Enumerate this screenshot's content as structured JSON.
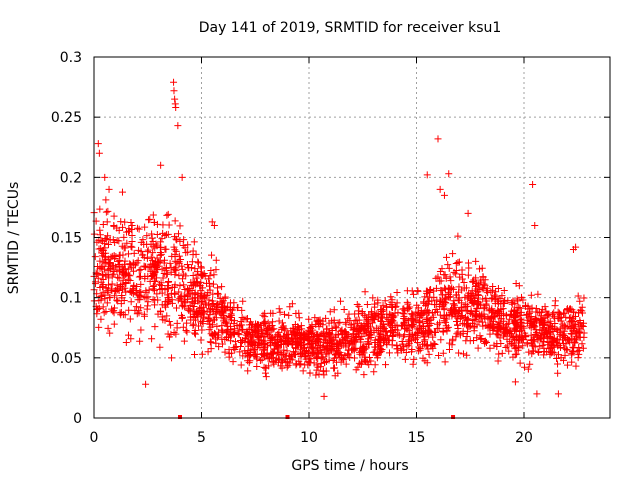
{
  "chart_data": {
    "type": "scatter",
    "title": "Day 141 of 2019, SRMTID for receiver ksu1",
    "xlabel": "GPS time / hours",
    "ylabel": "SRMTID / TECUs",
    "xlim": [
      0,
      24
    ],
    "ylim": [
      0,
      0.3
    ],
    "x_ticks": [
      0,
      5,
      10,
      15,
      20
    ],
    "x_tick_labels": [
      "0",
      "5",
      "10",
      "15",
      "20"
    ],
    "y_ticks": [
      0,
      0.05,
      0.1,
      0.15,
      0.2,
      0.25,
      0.3
    ],
    "y_tick_labels": [
      "0",
      "0.05",
      "0.1",
      "0.15",
      "0.2",
      "0.25",
      "0.3"
    ],
    "grid": true,
    "marker": "+",
    "color": "#ff0000",
    "series": [
      {
        "name": "SRMTID",
        "description": "dense scatter of per-epoch SRMTID values; envelope given as time/center/spread, notable spikes listed explicitly",
        "envelope": [
          {
            "t": 0.0,
            "center": 0.13,
            "spread": 0.05
          },
          {
            "t": 1.0,
            "center": 0.12,
            "spread": 0.05
          },
          {
            "t": 2.0,
            "center": 0.12,
            "spread": 0.05
          },
          {
            "t": 3.0,
            "center": 0.12,
            "spread": 0.05
          },
          {
            "t": 4.0,
            "center": 0.11,
            "spread": 0.05
          },
          {
            "t": 5.0,
            "center": 0.1,
            "spread": 0.04
          },
          {
            "t": 6.0,
            "center": 0.085,
            "spread": 0.035
          },
          {
            "t": 7.0,
            "center": 0.065,
            "spread": 0.025
          },
          {
            "t": 9.0,
            "center": 0.062,
            "spread": 0.025
          },
          {
            "t": 11.0,
            "center": 0.062,
            "spread": 0.025
          },
          {
            "t": 13.0,
            "center": 0.072,
            "spread": 0.03
          },
          {
            "t": 15.0,
            "center": 0.075,
            "spread": 0.03
          },
          {
            "t": 16.0,
            "center": 0.09,
            "spread": 0.04
          },
          {
            "t": 17.0,
            "center": 0.095,
            "spread": 0.04
          },
          {
            "t": 18.0,
            "center": 0.09,
            "spread": 0.035
          },
          {
            "t": 19.0,
            "center": 0.08,
            "spread": 0.03
          },
          {
            "t": 20.0,
            "center": 0.075,
            "spread": 0.03
          },
          {
            "t": 21.0,
            "center": 0.07,
            "spread": 0.03
          },
          {
            "t": 22.0,
            "center": 0.07,
            "spread": 0.03
          },
          {
            "t": 22.8,
            "center": 0.07,
            "spread": 0.03
          }
        ],
        "spikes": [
          {
            "x": 0.2,
            "y": 0.228
          },
          {
            "x": 0.25,
            "y": 0.22
          },
          {
            "x": 0.5,
            "y": 0.2
          },
          {
            "x": 0.7,
            "y": 0.19
          },
          {
            "x": 3.1,
            "y": 0.21
          },
          {
            "x": 3.7,
            "y": 0.279
          },
          {
            "x": 3.72,
            "y": 0.272
          },
          {
            "x": 3.75,
            "y": 0.265
          },
          {
            "x": 3.78,
            "y": 0.261
          },
          {
            "x": 3.8,
            "y": 0.258
          },
          {
            "x": 3.9,
            "y": 0.243
          },
          {
            "x": 4.1,
            "y": 0.2
          },
          {
            "x": 5.5,
            "y": 0.163
          },
          {
            "x": 5.6,
            "y": 0.16
          },
          {
            "x": 16.0,
            "y": 0.232
          },
          {
            "x": 16.1,
            "y": 0.19
          },
          {
            "x": 16.5,
            "y": 0.203
          },
          {
            "x": 16.3,
            "y": 0.185
          },
          {
            "x": 15.5,
            "y": 0.202
          },
          {
            "x": 17.4,
            "y": 0.17
          },
          {
            "x": 20.4,
            "y": 0.194
          },
          {
            "x": 20.5,
            "y": 0.16
          },
          {
            "x": 22.3,
            "y": 0.14
          },
          {
            "x": 22.4,
            "y": 0.142
          },
          {
            "x": 20.6,
            "y": 0.02
          },
          {
            "x": 21.6,
            "y": 0.02
          },
          {
            "x": 10.7,
            "y": 0.018
          },
          {
            "x": 2.4,
            "y": 0.028
          },
          {
            "x": 19.6,
            "y": 0.03
          }
        ],
        "gap_markers": [
          4.0,
          9.0,
          16.7
        ]
      }
    ]
  }
}
